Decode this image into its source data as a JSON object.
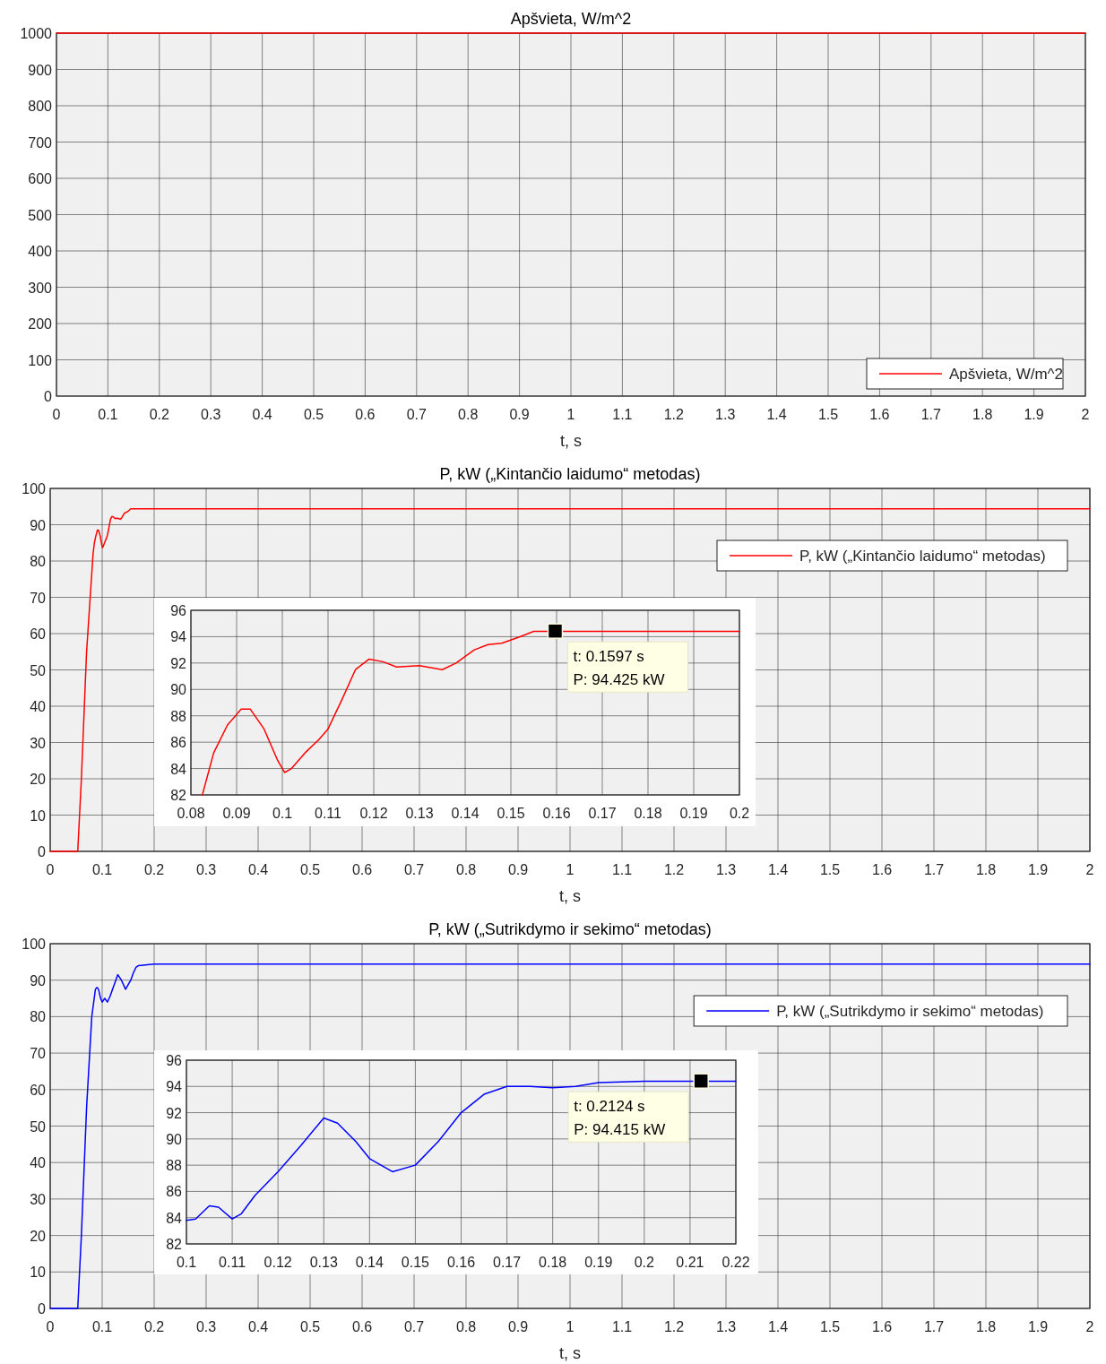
{
  "chart_data": [
    {
      "type": "line",
      "title": "Apšvieta, W/m^2",
      "xlabel": "t, s",
      "xlim": [
        0,
        2
      ],
      "ylim": [
        0,
        1000
      ],
      "xticks": [
        0,
        0.1,
        0.2,
        0.3,
        0.4,
        0.5,
        0.6,
        0.7,
        0.8,
        0.9,
        1,
        1.1,
        1.2,
        1.3,
        1.4,
        1.5,
        1.6,
        1.7,
        1.8,
        1.9,
        2
      ],
      "yticks": [
        0,
        100,
        200,
        300,
        400,
        500,
        600,
        700,
        800,
        900,
        1000
      ],
      "grid": true,
      "legend": "bottom right",
      "series": [
        {
          "name": "Apšvieta, W/m^2",
          "color": "#ff0000",
          "x": [
            0,
            2
          ],
          "values": [
            1000,
            1000
          ]
        }
      ]
    },
    {
      "type": "line",
      "title": "P, kW („Kintančio laidumo“ metodas)",
      "xlabel": "t, s",
      "xlim": [
        0,
        2
      ],
      "ylim": [
        0,
        100
      ],
      "xticks": [
        0,
        0.1,
        0.2,
        0.3,
        0.4,
        0.5,
        0.6,
        0.7,
        0.8,
        0.9,
        1,
        1.1,
        1.2,
        1.3,
        1.4,
        1.5,
        1.6,
        1.7,
        1.8,
        1.9,
        2
      ],
      "yticks": [
        0,
        10,
        20,
        30,
        40,
        50,
        60,
        70,
        80,
        90,
        100
      ],
      "grid": true,
      "legend": "top right",
      "series": [
        {
          "name": "P, kW („Kintančio laidumo“ metodas)",
          "color": "#ff0000",
          "x": [
            0,
            0.053,
            0.06,
            0.07,
            0.0825,
            0.085,
            0.088,
            0.091,
            0.093,
            0.096,
            0.099,
            0.1005,
            0.102,
            0.105,
            0.108,
            0.11,
            0.113,
            0.116,
            0.119,
            0.122,
            0.125,
            0.13,
            0.135,
            0.138,
            0.142,
            0.145,
            0.148,
            0.152,
            0.155,
            0.16,
            0.17,
            0.18,
            0.2,
            2
          ],
          "values": [
            0,
            0,
            20,
            55,
            82,
            85,
            87,
            88.5,
            88.5,
            87,
            84.6,
            83.7,
            84,
            85.2,
            86.2,
            87,
            89.2,
            91.5,
            92.3,
            92.1,
            91.7,
            91.8,
            91.5,
            92,
            93,
            93.4,
            93.5,
            94,
            94.4,
            94.4,
            94.4,
            94.4,
            94.4,
            94.4
          ]
        }
      ]
    },
    {
      "type": "line",
      "xlim": [
        0.08,
        0.2
      ],
      "ylim": [
        82,
        96
      ],
      "xticks": [
        0.08,
        0.09,
        0.1,
        0.11,
        0.12,
        0.13,
        0.14,
        0.15,
        0.16,
        0.17,
        0.18,
        0.19,
        0.2
      ],
      "yticks": [
        82,
        84,
        86,
        88,
        90,
        92,
        94,
        96
      ],
      "grid": true,
      "annotations": [
        "t: 0.1597 s",
        "P: 94.425 kW"
      ],
      "series": [
        {
          "color": "#ff0000",
          "x": [
            0.0825,
            0.085,
            0.088,
            0.091,
            0.093,
            0.096,
            0.099,
            0.1005,
            0.102,
            0.105,
            0.108,
            0.11,
            0.113,
            0.116,
            0.119,
            0.122,
            0.125,
            0.13,
            0.135,
            0.138,
            0.142,
            0.145,
            0.148,
            0.152,
            0.155,
            0.17,
            0.18,
            0.2
          ],
          "values": [
            82,
            85.2,
            87.3,
            88.5,
            88.5,
            87,
            84.6,
            83.7,
            84,
            85.2,
            86.2,
            87,
            89.2,
            91.5,
            92.3,
            92.1,
            91.7,
            91.8,
            91.5,
            92,
            93,
            93.4,
            93.5,
            94,
            94.4,
            94.4,
            94.4,
            94.4
          ]
        },
        {
          "type": "scatter",
          "marker": "square",
          "color": "#000000",
          "x": [
            0.1597
          ],
          "values": [
            94.425
          ]
        }
      ]
    },
    {
      "type": "line",
      "title": "P, kW („Sutrikdymo ir sekimo“ metodas)",
      "xlabel": "t, s",
      "xlim": [
        0,
        2
      ],
      "ylim": [
        0,
        100
      ],
      "xticks": [
        0,
        0.1,
        0.2,
        0.3,
        0.4,
        0.5,
        0.6,
        0.7,
        0.8,
        0.9,
        1,
        1.1,
        1.2,
        1.3,
        1.4,
        1.5,
        1.6,
        1.7,
        1.8,
        1.9,
        2
      ],
      "yticks": [
        0,
        10,
        20,
        30,
        40,
        50,
        60,
        70,
        80,
        90,
        100
      ],
      "grid": true,
      "legend": "top right",
      "series": [
        {
          "name": "P, kW („Sutrikdymo ir sekimo“ metodas)",
          "color": "#0000ff",
          "x": [
            0,
            0.053,
            0.06,
            0.07,
            0.08,
            0.087,
            0.09,
            0.093,
            0.097,
            0.1,
            0.105,
            0.11,
            0.115,
            0.12,
            0.125,
            0.13,
            0.137,
            0.145,
            0.155,
            0.16,
            0.165,
            0.17,
            0.2,
            2
          ],
          "values": [
            0,
            0,
            20,
            55,
            80,
            87.5,
            88,
            87.5,
            85,
            84,
            85,
            84,
            85.5,
            87.5,
            89.5,
            91.5,
            90,
            87.5,
            90,
            92,
            93.5,
            94,
            94.4,
            94.4
          ]
        }
      ]
    },
    {
      "type": "line",
      "xlim": [
        0.1,
        0.22
      ],
      "ylim": [
        82,
        96
      ],
      "xticks": [
        0.1,
        0.11,
        0.12,
        0.13,
        0.14,
        0.15,
        0.16,
        0.17,
        0.18,
        0.19,
        0.2,
        0.21,
        0.22
      ],
      "yticks": [
        82,
        84,
        86,
        88,
        90,
        92,
        94,
        96
      ],
      "grid": true,
      "annotations": [
        "t: 0.2124 s",
        "P: 94.415 kW"
      ],
      "series": [
        {
          "color": "#0000ff",
          "x": [
            0.1,
            0.102,
            0.105,
            0.107,
            0.11,
            0.112,
            0.115,
            0.12,
            0.125,
            0.13,
            0.133,
            0.137,
            0.14,
            0.145,
            0.15,
            0.155,
            0.16,
            0.165,
            0.17,
            0.175,
            0.18,
            0.185,
            0.19,
            0.2,
            0.21,
            0.22
          ],
          "values": [
            83.8,
            83.9,
            84.9,
            84.8,
            83.9,
            84.3,
            85.7,
            87.5,
            89.5,
            91.6,
            91.2,
            89.8,
            88.5,
            87.5,
            88,
            89.8,
            92,
            93.4,
            94,
            94,
            93.9,
            94,
            94.3,
            94.4,
            94.4,
            94.4
          ]
        },
        {
          "type": "scatter",
          "marker": "square",
          "color": "#000000",
          "x": [
            0.2124
          ],
          "values": [
            94.415
          ]
        }
      ]
    }
  ]
}
